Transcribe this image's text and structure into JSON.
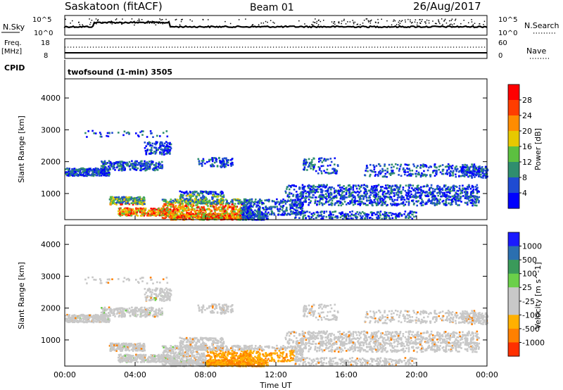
{
  "header": {
    "station": "Saskatoon (fitACF)",
    "beam": "Beam 01",
    "date": "26/Aug/2017"
  },
  "top_panels": {
    "nsky": {
      "label": "N.Sky",
      "ticks": [
        "10^5",
        "10^0"
      ],
      "right_label": "N.Search",
      "right_ticks": [
        "10^5",
        "10^0"
      ]
    },
    "freq": {
      "label_line1": "Freq.",
      "label_line2": "[MHz]",
      "ticks": [
        "18",
        "8"
      ],
      "right_label": "Nave",
      "right_ticks": [
        "60",
        "0"
      ]
    },
    "cpid": {
      "label": "CPID",
      "value": "twofsound (1-min) 3505"
    }
  },
  "chart_data": [
    {
      "type": "heatmap",
      "name": "power",
      "ylabel": "Slant Range [km]",
      "ylim": [
        180,
        4600
      ],
      "yticks": [
        "1000",
        "2000",
        "3000",
        "4000"
      ],
      "colorbar_label": "Power [dB]",
      "colorbar_ticks": [
        "4",
        "8",
        "12",
        "16",
        "20",
        "24",
        "28"
      ],
      "colors": [
        "#0000ff",
        "#1f4bd2",
        "#2f8e6e",
        "#5cc040",
        "#e6c800",
        "#ff8c00",
        "#ff3d00",
        "#ff0000"
      ],
      "grid": false
    },
    {
      "type": "heatmap",
      "name": "velocity",
      "ylabel": "Slant Range [km]",
      "ylim": [
        180,
        4600
      ],
      "yticks": [
        "1000",
        "2000",
        "3000",
        "4000"
      ],
      "colorbar_label": "Velocity [m s^-1]",
      "colorbar_ticks": [
        "1000",
        "500",
        "100",
        "25",
        "-25",
        "-100",
        "-500",
        "-1000"
      ],
      "colors": [
        "#1a1aff",
        "#2b6fb0",
        "#3a9a5a",
        "#6bd04a",
        "#c8c8c8",
        "#c8c8c8",
        "#ffb000",
        "#ff8000",
        "#ff3000"
      ],
      "grid": false
    }
  ],
  "xaxis": {
    "label": "Time UT",
    "ticks": [
      "00:00",
      "04:00",
      "08:00",
      "12:00",
      "16:00",
      "20:00",
      "00:00"
    ]
  }
}
